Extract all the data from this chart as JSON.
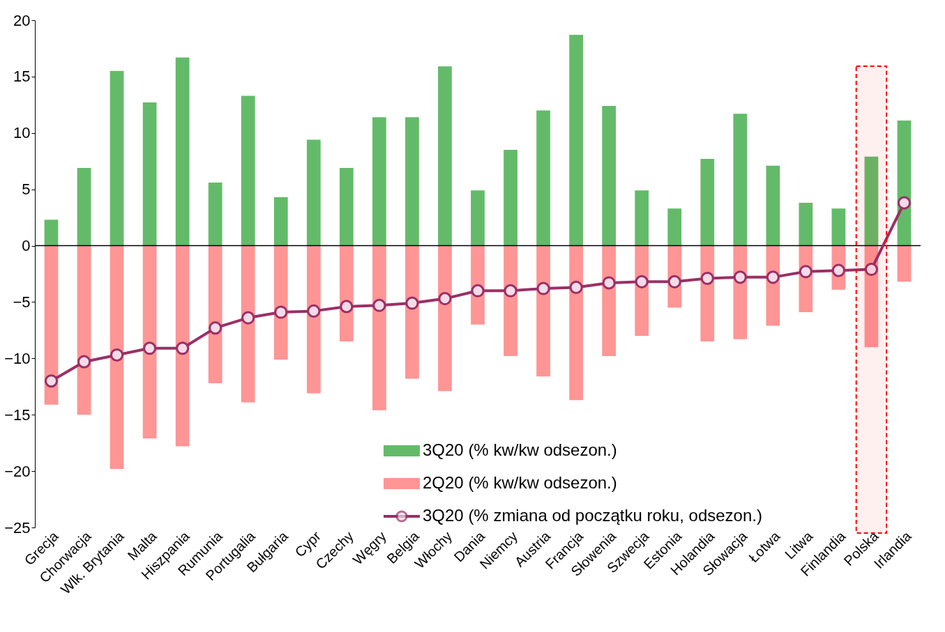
{
  "chart_data": {
    "type": "bar",
    "categories": [
      "Grecja",
      "Chorwacja",
      "Wlk. Brytania",
      "Malta",
      "Hiszpania",
      "Rumunia",
      "Portugalia",
      "Bułgaria",
      "Cypr",
      "Czechy",
      "Węgry",
      "Belgia",
      "Włochy",
      "Dania",
      "Niemcy",
      "Austria",
      "Francja",
      "Słowenia",
      "Szwecja",
      "Estonia",
      "Holandia",
      "Słowacja",
      "Łotwa",
      "Litwa",
      "Finlandia",
      "Polska",
      "Irlandia"
    ],
    "series": [
      {
        "name": "3Q20 (% kw/kw odsezon.)",
        "color": "#63bb6a",
        "values": [
          2.3,
          6.9,
          15.5,
          12.7,
          16.7,
          5.6,
          13.3,
          4.3,
          9.4,
          6.9,
          11.4,
          11.4,
          15.9,
          4.9,
          8.5,
          12.0,
          18.7,
          12.4,
          4.9,
          3.3,
          7.7,
          11.7,
          7.1,
          3.8,
          3.3,
          7.9,
          11.1
        ]
      },
      {
        "name": "2Q20 (% kw/kw odsezon.)",
        "color": "#ff9595",
        "values": [
          -14.1,
          -15.0,
          -19.8,
          -17.1,
          -17.8,
          -12.2,
          -13.9,
          -10.1,
          -13.1,
          -8.5,
          -14.6,
          -11.8,
          -12.9,
          -7.0,
          -9.8,
          -11.6,
          -13.7,
          -9.8,
          -8.0,
          -5.5,
          -8.5,
          -8.3,
          -7.1,
          -5.9,
          -3.9,
          -9.0,
          -3.2
        ]
      },
      {
        "name": "3Q20 (% zmiana od początku roku, odsezon.)",
        "type": "line",
        "color": "#9c2f65",
        "marker": "circle",
        "values": [
          -12.0,
          -10.3,
          -9.7,
          -9.1,
          -9.1,
          -7.3,
          -6.4,
          -5.9,
          -5.8,
          -5.4,
          -5.3,
          -5.1,
          -4.7,
          -4.0,
          -4.0,
          -3.8,
          -3.7,
          -3.3,
          -3.2,
          -3.2,
          -2.9,
          -2.8,
          -2.8,
          -2.3,
          -2.2,
          -2.1,
          3.8
        ]
      }
    ],
    "ylim": [
      -25,
      20
    ],
    "yticks": [
      -25,
      -20,
      -15,
      -10,
      -5,
      0,
      5,
      10,
      15,
      20
    ],
    "legend": "bottom right",
    "stacked": true,
    "bands": [
      {
        "axis": "x",
        "from": "Polska",
        "to": "Polska",
        "color": "#ff0000"
      }
    ]
  }
}
